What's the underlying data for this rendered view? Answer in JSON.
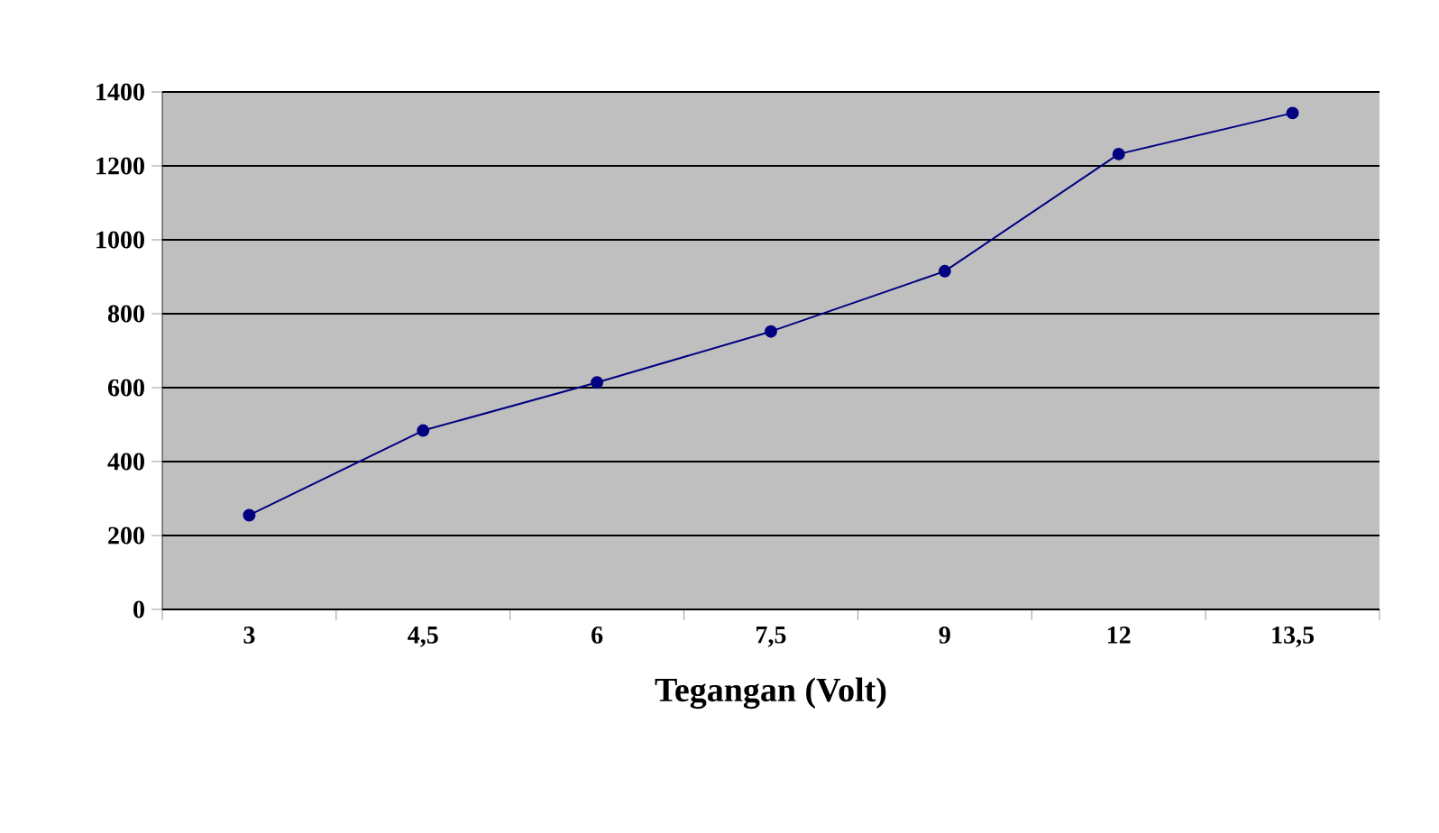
{
  "chart_data": {
    "type": "line",
    "xlabel": "Tegangan (Volt)",
    "categories": [
      "3",
      "4,5",
      "6",
      "7,5",
      "9",
      "12",
      "13,5"
    ],
    "series": [
      {
        "color": "#000080",
        "values": [
          255,
          484,
          614,
          752,
          915,
          1232,
          1343
        ]
      }
    ],
    "ylim": [
      0,
      1400
    ],
    "yticks": [
      0,
      200,
      400,
      600,
      800,
      1000,
      1200,
      1400
    ],
    "grid": "y",
    "marker": "circle",
    "line_style": "solid"
  }
}
